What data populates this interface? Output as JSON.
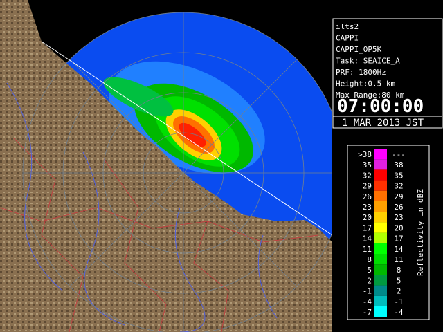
{
  "info": {
    "lines": [
      "ilts2",
      "CAPPI",
      "CAPPI_OP5K",
      "Task: SEAICE_A",
      "PRF: 1800Hz",
      "Height:0.5 km",
      "Max Range:80 km"
    ],
    "time": "07:00:00",
    "date": "1 MAR 2013 JST"
  },
  "legend": {
    "title": "Reflectivity in dBZ",
    "items": [
      {
        "low": ">38",
        "high": "---",
        "color": "#ff00ff"
      },
      {
        "low": "35",
        "high": "38",
        "color": "#e020e0"
      },
      {
        "low": "32",
        "high": "35",
        "color": "#ff0000"
      },
      {
        "low": "29",
        "high": "32",
        "color": "#ff3000"
      },
      {
        "low": "26",
        "high": "29",
        "color": "#ff7000"
      },
      {
        "low": "23",
        "high": "26",
        "color": "#ffa000"
      },
      {
        "low": "20",
        "high": "23",
        "color": "#ffd000"
      },
      {
        "low": "17",
        "high": "20",
        "color": "#ffff00"
      },
      {
        "low": "14",
        "high": "17",
        "color": "#b0ff00"
      },
      {
        "low": "11",
        "high": "14",
        "color": "#00ff00"
      },
      {
        "low": "8",
        "high": "11",
        "color": "#00dd00"
      },
      {
        "low": "5",
        "high": "8",
        "color": "#00b800"
      },
      {
        "low": "2",
        "high": "5",
        "color": "#009a40"
      },
      {
        "low": "-1",
        "high": "2",
        "color": "#008a8a"
      },
      {
        "low": "-4",
        "high": "-1",
        "color": "#00bcbc"
      },
      {
        "low": "-7",
        "high": "-4",
        "color": "#00ffff"
      }
    ]
  }
}
